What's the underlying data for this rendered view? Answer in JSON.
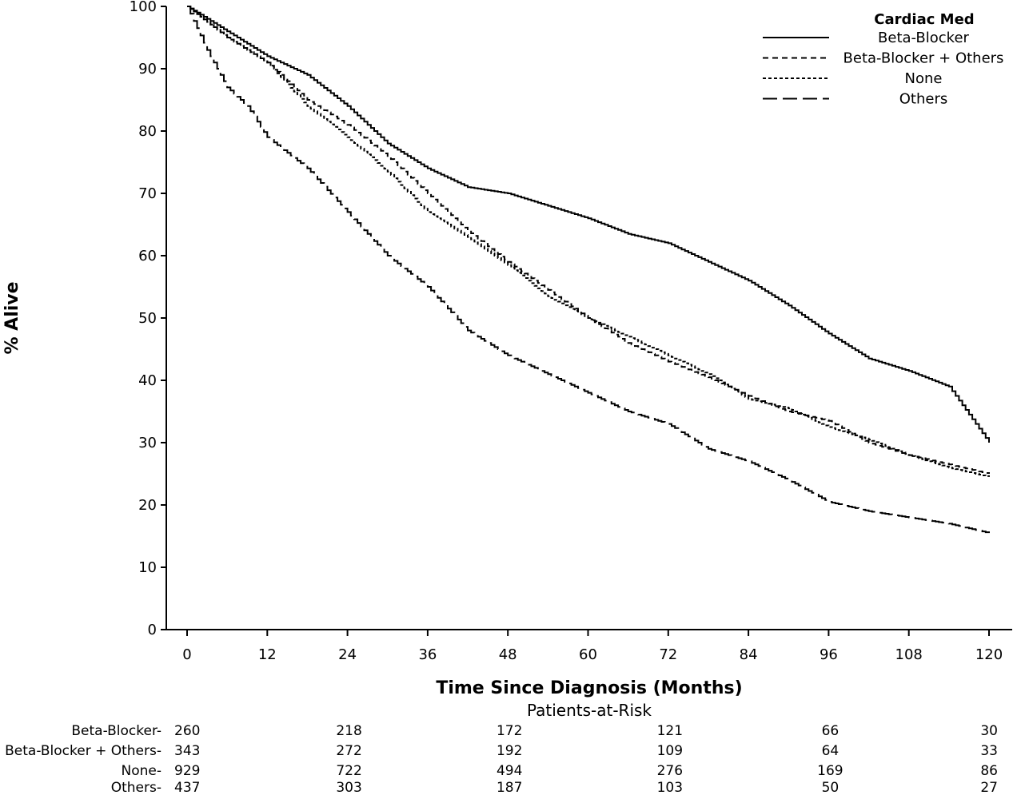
{
  "chart_data": {
    "type": "line",
    "xlabel": "Time Since Diagnosis (Months)",
    "ylabel": "% Alive",
    "xlim": [
      0,
      120
    ],
    "ylim": [
      0,
      100
    ],
    "x_ticks": [
      0,
      12,
      24,
      36,
      48,
      60,
      72,
      84,
      96,
      108,
      120
    ],
    "y_ticks": [
      0,
      10,
      20,
      30,
      40,
      50,
      60,
      70,
      80,
      90,
      100
    ],
    "legend": {
      "title": "Cardiac Med",
      "position": "top-right"
    },
    "series": [
      {
        "name": "Beta-Blocker",
        "style": "solid",
        "x": [
          0,
          6,
          12,
          18,
          24,
          30,
          36,
          42,
          48,
          54,
          60,
          66,
          72,
          78,
          84,
          90,
          96,
          102,
          108,
          114,
          118,
          120
        ],
        "y": [
          100,
          96,
          92,
          89,
          84,
          78,
          74,
          71,
          70,
          68,
          66,
          63.5,
          62,
          59,
          56,
          52,
          47.5,
          43.5,
          41.5,
          39,
          33,
          30
        ]
      },
      {
        "name": "Beta-Blocker + Others",
        "style": "dashed",
        "x": [
          0,
          6,
          12,
          18,
          24,
          30,
          36,
          42,
          48,
          54,
          60,
          66,
          72,
          78,
          84,
          90,
          96,
          102,
          108,
          114,
          120
        ],
        "y": [
          100,
          95,
          91,
          85,
          81,
          76,
          70,
          64,
          59,
          54.5,
          50,
          46,
          43,
          40.5,
          37.5,
          35,
          33.5,
          30,
          28,
          26.5,
          25
        ]
      },
      {
        "name": "None",
        "style": "dotted",
        "x": [
          0,
          6,
          12,
          18,
          24,
          30,
          36,
          42,
          48,
          54,
          60,
          66,
          72,
          78,
          84,
          90,
          96,
          102,
          108,
          114,
          120
        ],
        "y": [
          100,
          95,
          91,
          84,
          79,
          73.5,
          67,
          63,
          58.5,
          53.5,
          50,
          47,
          44,
          41,
          37,
          35.5,
          32.5,
          30.5,
          28,
          26,
          24.5
        ]
      },
      {
        "name": "Others",
        "style": "longdash",
        "x": [
          0,
          3,
          6,
          9,
          12,
          18,
          24,
          30,
          36,
          42,
          48,
          54,
          60,
          66,
          72,
          78,
          84,
          90,
          96,
          102,
          108,
          114,
          120
        ],
        "y": [
          100,
          93,
          87,
          84,
          79,
          74,
          67,
          60,
          55,
          48,
          44,
          41,
          38,
          35,
          33,
          29,
          27,
          24,
          20.5,
          19,
          18,
          17,
          15.5
        ]
      }
    ],
    "patients_at_risk": {
      "title": "Patients-at-Risk",
      "timepoints": [
        0,
        24,
        48,
        72,
        96,
        120
      ],
      "rows": [
        {
          "label": "Beta-Blocker-",
          "values": [
            "260",
            "218",
            "172",
            "121",
            "66",
            "30"
          ]
        },
        {
          "label": "Beta-Blocker + Others-",
          "values": [
            "343",
            "272",
            "192",
            "109",
            "64",
            "33"
          ]
        },
        {
          "label": "None-",
          "values": [
            "929",
            "722",
            "494",
            "276",
            "169",
            "86"
          ]
        },
        {
          "label": "Others-",
          "values": [
            "437",
            "303",
            "187",
            "103",
            "50",
            "27"
          ]
        }
      ]
    }
  }
}
